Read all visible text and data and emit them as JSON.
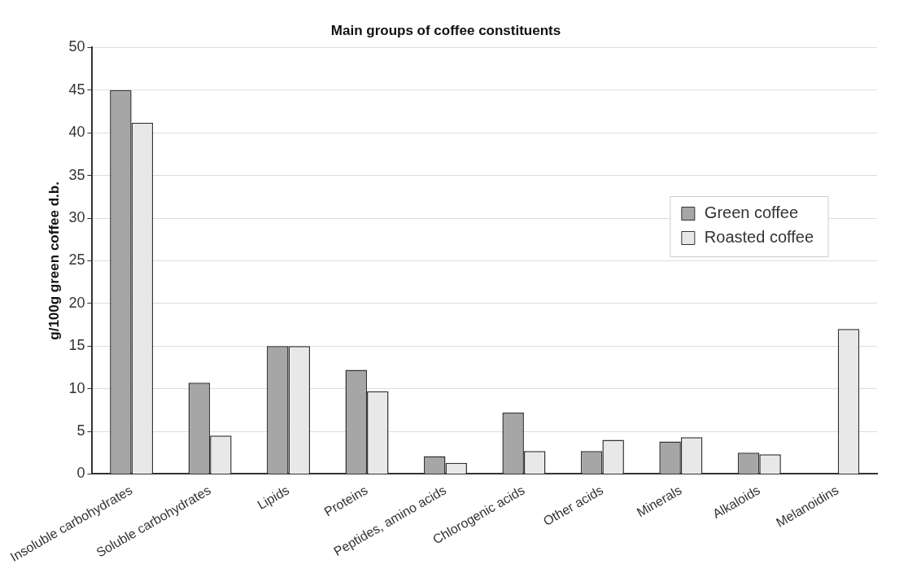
{
  "chart_data": {
    "type": "bar",
    "title": "Main groups of coffee constituents",
    "ylabel": "g/100g green coffee d.b.",
    "categories": [
      "Insoluble carbohydrates",
      "Soluble carbohydrates",
      "Lipids",
      "Proteins",
      "Peptides, amino acids",
      "Chlorogenic acids",
      "Other acids",
      "Minerals",
      "Alkaloids",
      "Melanoidins"
    ],
    "series": [
      {
        "name": "Green coffee",
        "color": "#a6a6a6",
        "values": [
          45,
          10.7,
          15,
          12.2,
          2.1,
          7.2,
          2.7,
          3.8,
          2.5,
          0
        ]
      },
      {
        "name": "Roasted coffee",
        "color": "#e8e8e8",
        "values": [
          41.2,
          4.5,
          15,
          9.7,
          1.3,
          2.7,
          4,
          4.3,
          2.3,
          17
        ]
      }
    ],
    "ylim": [
      0,
      50
    ],
    "yticks": [
      0,
      5,
      10,
      15,
      20,
      25,
      30,
      35,
      40,
      45,
      50
    ],
    "grid": "y",
    "legend": "right"
  }
}
